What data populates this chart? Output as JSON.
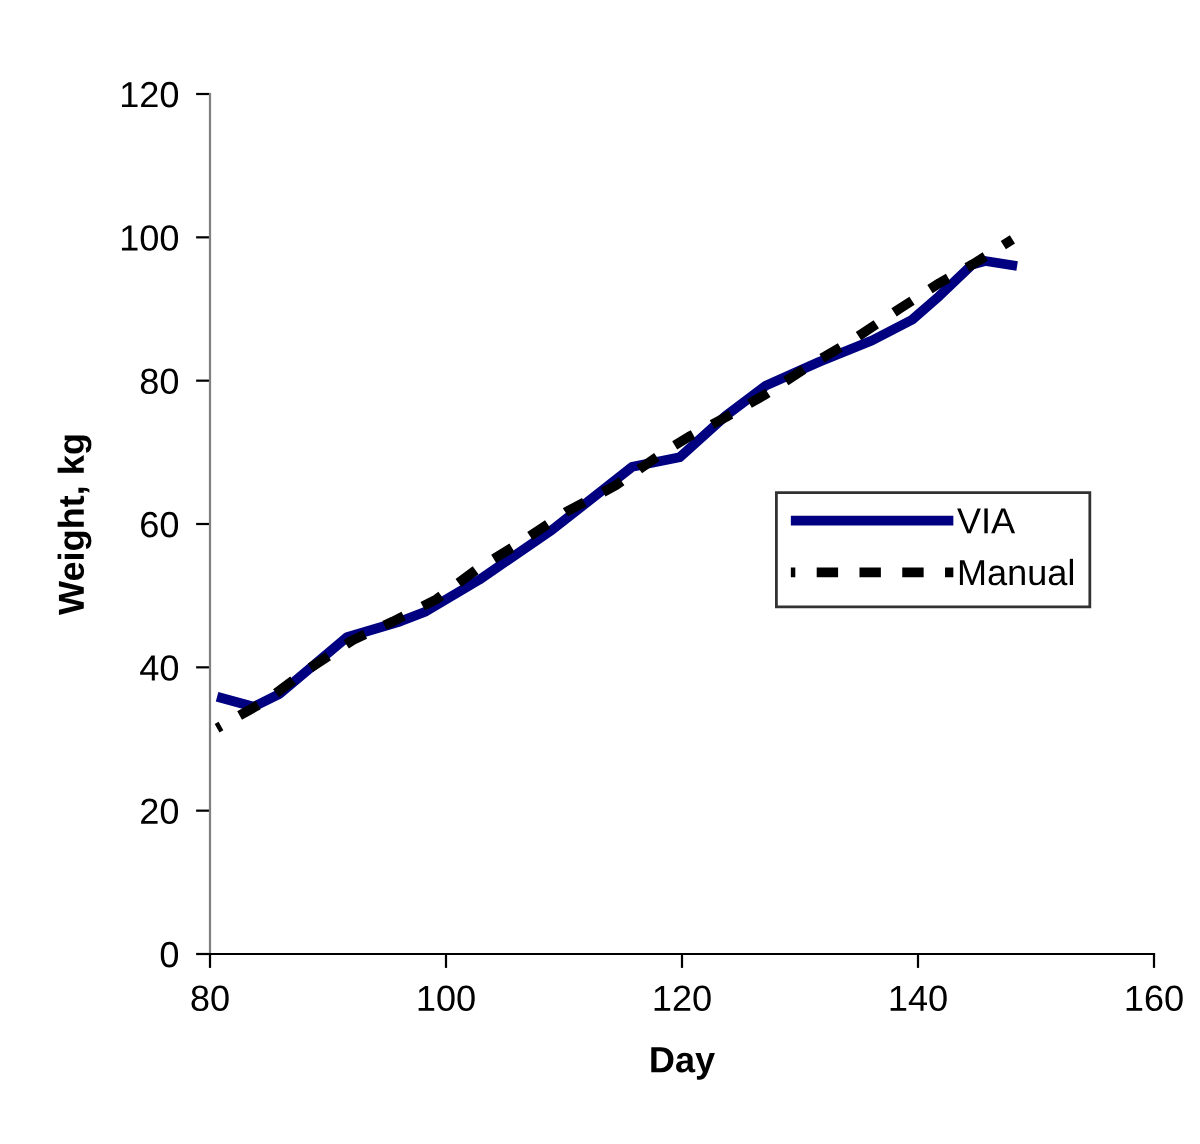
{
  "chart_data": {
    "type": "line",
    "xlabel": "Day",
    "ylabel": "Weight, kg",
    "xlim": [
      80,
      160
    ],
    "xticks": [
      80,
      100,
      120,
      140,
      160
    ],
    "ylim": [
      0,
      120
    ],
    "yticks": [
      0,
      20,
      40,
      60,
      80,
      100,
      120
    ],
    "grid": false,
    "legend": "right",
    "series": [
      {
        "name": "VIA",
        "color": "#000080",
        "line_style": "solid",
        "x": [
          80.6,
          83.7,
          85.9,
          91.6,
          96.1,
          98.3,
          102.8,
          109.0,
          115.8,
          119.8,
          123.7,
          127.1,
          131.6,
          136.1,
          139.5,
          141.8,
          144.6,
          145.7,
          148.4
        ],
        "values": [
          35.9,
          34.5,
          36.3,
          44.2,
          46.4,
          47.8,
          52.2,
          59.2,
          68.0,
          69.3,
          75.1,
          79.3,
          82.6,
          85.6,
          88.5,
          91.8,
          96.2,
          96.7,
          96.0
        ]
      },
      {
        "name": "Manual",
        "color": "#000000",
        "line_style": "dashed",
        "x": [
          80.6,
          84.8,
          88.2,
          92.1,
          95.5,
          99.2,
          102.8,
          106.2,
          110.2,
          114.4,
          118.9,
          120.6,
          123.7,
          127.1,
          130.8,
          134.4,
          138.4,
          141.8,
          144.6,
          148.0
        ],
        "values": [
          31.5,
          35.4,
          39.6,
          43.8,
          46.4,
          49.5,
          53.9,
          57.3,
          61.7,
          65.4,
          70.5,
          72.2,
          74.9,
          78.1,
          82.1,
          85.6,
          90.0,
          93.6,
          96.2,
          99.7
        ]
      }
    ]
  }
}
